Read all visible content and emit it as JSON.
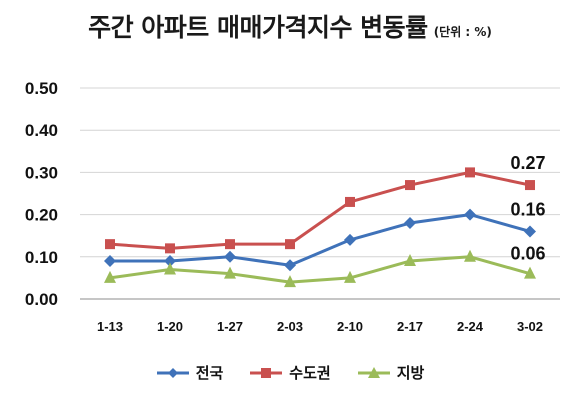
{
  "chart_data": {
    "type": "line",
    "title": "주간 아파트 매매가격지수 변동률",
    "unit_note": "(단위 : %)",
    "categories": [
      "1-13",
      "1-20",
      "1-27",
      "2-03",
      "2-10",
      "2-17",
      "2-24",
      "3-02"
    ],
    "ylim": [
      0,
      0.5
    ],
    "yticks": [
      "0.00",
      "0.10",
      "0.20",
      "0.30",
      "0.40",
      "0.50"
    ],
    "grid": true,
    "legend_position": "bottom",
    "series": [
      {
        "name": "전국",
        "color": "#3f72b9",
        "marker": "diamond",
        "values": [
          0.09,
          0.09,
          0.1,
          0.08,
          0.14,
          0.18,
          0.2,
          0.16
        ],
        "end_label": "0.16"
      },
      {
        "name": "수도권",
        "color": "#c9504f",
        "marker": "square",
        "values": [
          0.13,
          0.12,
          0.13,
          0.13,
          0.23,
          0.27,
          0.3,
          0.27
        ],
        "end_label": "0.27"
      },
      {
        "name": "지방",
        "color": "#9bbb59",
        "marker": "triangle",
        "values": [
          0.05,
          0.07,
          0.06,
          0.04,
          0.05,
          0.09,
          0.1,
          0.06
        ],
        "end_label": "0.06"
      }
    ]
  }
}
